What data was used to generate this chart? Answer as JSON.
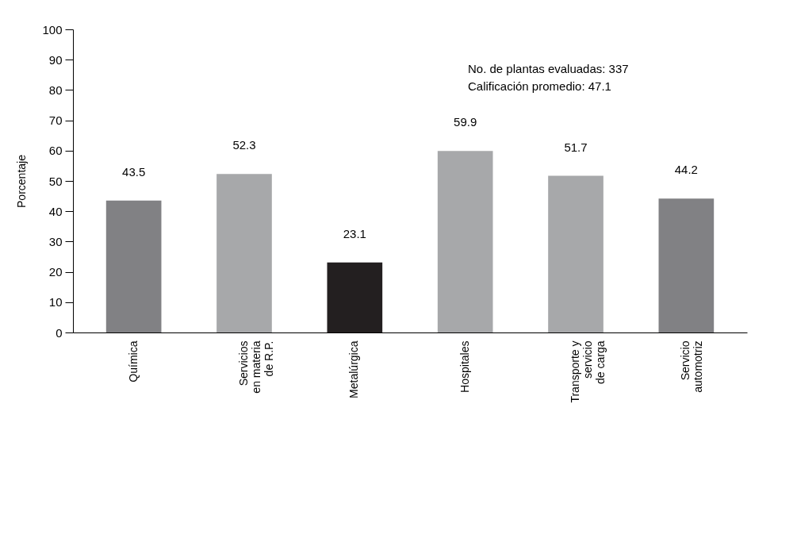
{
  "chart_data": {
    "type": "bar",
    "ylabel": "Porcentaje",
    "categories": [
      "Química",
      "Servicios\nen materia\nde R.P.",
      "Metalúrgica",
      "Hospitales",
      "Transporte y\nservicio\nde carga",
      "Servicio\nautomotriz"
    ],
    "values": [
      43.5,
      52.3,
      23.1,
      59.9,
      51.7,
      44.2
    ],
    "colors": [
      "#818184",
      "#a7a8aa",
      "#231f20",
      "#a7a8aa",
      "#a7a8aa",
      "#818184"
    ],
    "ylim": [
      0,
      100
    ],
    "yticks": [
      0,
      10,
      20,
      30,
      40,
      50,
      60,
      70,
      80,
      90,
      100
    ],
    "data_labels": true,
    "grid": false,
    "annotations": [
      "No. de plantas evaluadas: 337",
      "Calificación promedio: 47.1"
    ]
  }
}
